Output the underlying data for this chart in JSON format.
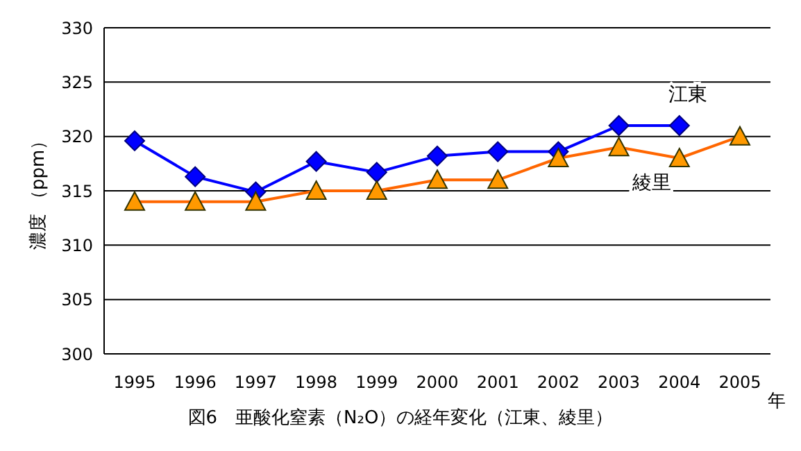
{
  "chart_data": {
    "type": "line",
    "title": "図6　亜酸化窒素（N₂O）の経年変化（江東、綾里）",
    "xlabel": "年",
    "ylabel": "濃度 （ppm）",
    "categories": [
      "1995",
      "1996",
      "1997",
      "1998",
      "1999",
      "2000",
      "2001",
      "2002",
      "2003",
      "2004",
      "2005"
    ],
    "series": [
      {
        "name": "江東",
        "color": "#0000ff",
        "marker": "diamond",
        "values": [
          319.6,
          316.3,
          314.9,
          317.7,
          316.7,
          318.2,
          318.6,
          318.6,
          321.0,
          321.0,
          null
        ]
      },
      {
        "name": "綾里",
        "color": "#ff6600",
        "marker": "triangle",
        "values": [
          314,
          314,
          314,
          315,
          315,
          316,
          316,
          318,
          319,
          318,
          320
        ]
      }
    ],
    "ylim": [
      300,
      330
    ],
    "yticks": [
      300,
      305,
      310,
      315,
      320,
      325,
      330
    ],
    "grid": "y",
    "legend": false
  }
}
